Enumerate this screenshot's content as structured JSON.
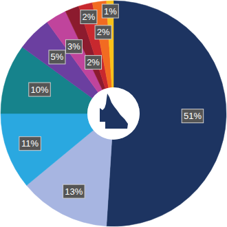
{
  "chart_data": {
    "type": "pie",
    "values": [
      51,
      13,
      11,
      10,
      5,
      3,
      2,
      2,
      2,
      1
    ],
    "value_labels": [
      "51%",
      "13%",
      "11%",
      "10%",
      "5%",
      "3%",
      "2%",
      "2%",
      "2%",
      "1%"
    ],
    "colors": [
      "#1d3461",
      "#a7b5e1",
      "#2aa8e0",
      "#16838c",
      "#6b3fa0",
      "#c0449c",
      "#8c1b2e",
      "#c8282e",
      "#f26b21",
      "#f9c11a"
    ],
    "data_labels": true
  }
}
